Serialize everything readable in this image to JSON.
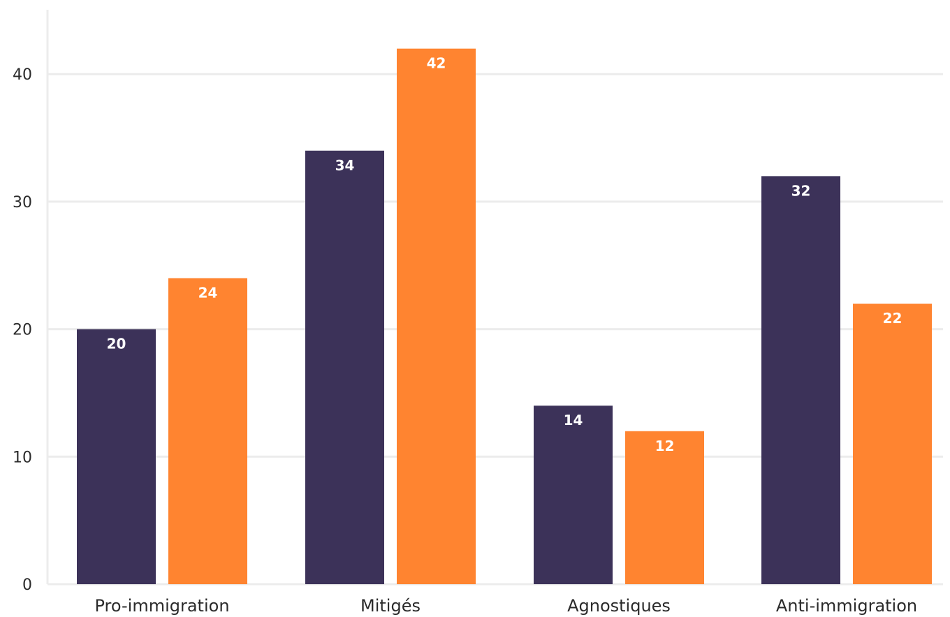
{
  "chart_data": {
    "type": "bar",
    "categories": [
      "Pro-immigration",
      "Mitigés",
      "Agnostiques",
      "Anti-immigration"
    ],
    "series": [
      {
        "values": [
          20,
          34,
          14,
          32
        ],
        "color": "#3c3259"
      },
      {
        "values": [
          24,
          42,
          12,
          22
        ],
        "color": "#ff8430"
      }
    ],
    "title": "",
    "xlabel": "",
    "ylabel": "",
    "ylim": [
      0,
      45
    ],
    "yticks": [
      0,
      10,
      20,
      30,
      40
    ],
    "grid": true,
    "legend": "none",
    "data_labels": true,
    "gridline_color": "#ececec"
  }
}
